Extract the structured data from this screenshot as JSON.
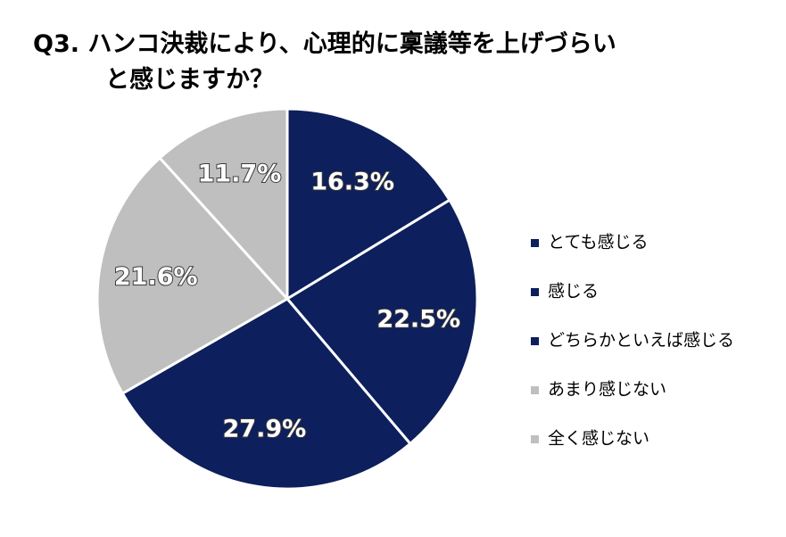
{
  "chart_data": {
    "type": "pie",
    "title": [
      "Q3. ハンコ決裁により、心理的に稟議等を上げづらい",
      "と感じますか？"
    ],
    "categories": [
      "とても感じる",
      "感じる",
      "どちらかといえば感じる",
      "あまり感じない",
      "全く感じない"
    ],
    "values": [
      16.3,
      22.5,
      27.9,
      21.6,
      11.7
    ],
    "value_labels": [
      "16.3%",
      "22.5%",
      "27.9%",
      "21.6%",
      "11.7%"
    ],
    "colors": [
      "#0d1f5c",
      "#0d1f5c",
      "#0d1f5c",
      "#bfbfbf",
      "#bfbfbf"
    ],
    "legend": "right"
  }
}
